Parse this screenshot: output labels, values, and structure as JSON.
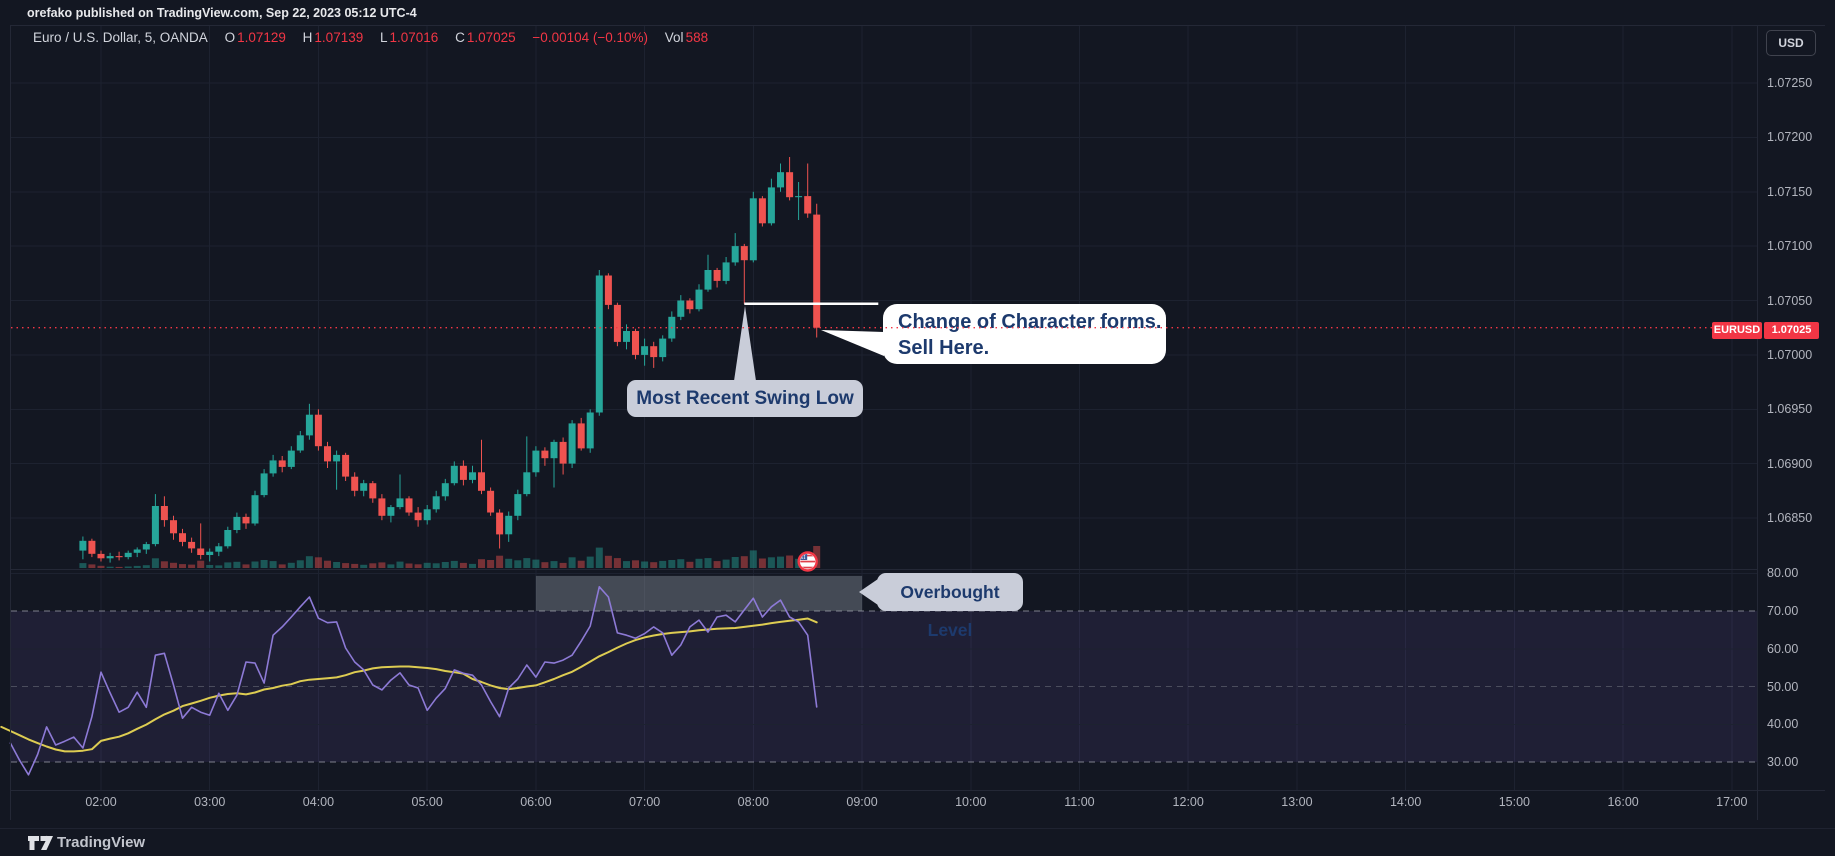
{
  "title_bar": {
    "text": "orefako published on TradingView.com, Sep 22, 2023 05:12 UTC-4"
  },
  "header": {
    "symbol_title": "Euro / U.S. Dollar, 5, OANDA",
    "ohlc": {
      "o_label": "O",
      "o": "1.07129",
      "h_label": "H",
      "h": "1.07139",
      "l_label": "L",
      "l": "1.07016",
      "c_label": "C",
      "c": "1.07025",
      "change": "−0.00104 (−0.10%)",
      "vol_label": "Vol",
      "vol": "588"
    },
    "currency_button": "USD"
  },
  "annotations": {
    "change_of_character": {
      "line1": "Change of Character forms.",
      "line2": "Sell Here."
    },
    "swing_low": {
      "text": "Most Recent Swing Low"
    },
    "overbought": {
      "text": "Overbought Level"
    }
  },
  "price_scale": {
    "labels": [
      "1.07250",
      "1.07200",
      "1.07150",
      "1.07100",
      "1.07050",
      "1.07000",
      "1.06950",
      "1.06900",
      "1.06850"
    ],
    "last_price_badge": {
      "symbol": "EURUSD",
      "price": "1.07025"
    }
  },
  "rsi_scale": {
    "labels": [
      "80.00",
      "70.00",
      "60.00",
      "50.00",
      "40.00",
      "30.00"
    ]
  },
  "time_axis": {
    "labels": [
      "02:00",
      "03:00",
      "04:00",
      "05:00",
      "06:00",
      "07:00",
      "08:00",
      "09:00",
      "10:00",
      "11:00",
      "12:00",
      "13:00",
      "14:00",
      "15:00",
      "16:00",
      "17:00"
    ]
  },
  "footer": {
    "brand": "TradingView"
  },
  "colors": {
    "background": "#131722",
    "grid": "#1d2230",
    "up": "#26a69a",
    "down": "#ef5350",
    "accent_red": "#f23645",
    "rsi_line": "#8d7ad6",
    "rsi_ma_line": "#ddcc52",
    "rsi_band_fill": "rgba(126,87,194,0.12)",
    "band_dash": "rgba(160,163,172,0.75)",
    "mid_dash": "rgba(120,123,134,0.5)",
    "overbought_zone_fill": "rgba(151,158,169,0.38)",
    "tooltip_bg": "#c9cdd9",
    "white_box_bg": "#ffffff",
    "annotation_text": "#1d3a6d",
    "swing_line": "#ffffff"
  },
  "chart_data": {
    "type": "candlestick",
    "title": "Euro / U.S. Dollar, 5, OANDA",
    "symbol": "EURUSD",
    "interval_minutes": 5,
    "x_unit": "minutes offset from 02:00",
    "price_axis_range": [
      1.068,
      1.0728
    ],
    "time_axis_range_labels": [
      "02:00",
      "17:00"
    ],
    "last_bar": {
      "open": 1.07129,
      "high": 1.07139,
      "low": 1.07016,
      "close": 1.07025,
      "change": -0.00104,
      "change_pct": -0.1,
      "volume": 588
    },
    "levels": {
      "current_price_dotted_line": 1.07025,
      "swing_low_white_line": {
        "price": 1.07047,
        "t_start": 355,
        "t_end": 429
      },
      "rsi_bands": [
        70,
        50,
        30
      ],
      "rsi_grid": [
        80,
        60,
        40
      ],
      "overbought_zone": {
        "t_start": 240,
        "t_end": 420,
        "rsi_low": 70,
        "rsi_high": 79.3
      }
    },
    "candles_format": [
      "t",
      "open",
      "high",
      "low",
      "close"
    ],
    "candles": [
      [
        -10,
        1.0682,
        1.06833,
        1.06812,
        1.06829
      ],
      [
        -5,
        1.06829,
        1.06831,
        1.06814,
        1.06817
      ],
      [
        0,
        1.06817,
        1.0682,
        1.0681,
        1.06813
      ],
      [
        5,
        1.06813,
        1.06818,
        1.06809,
        1.06815
      ],
      [
        10,
        1.06815,
        1.06819,
        1.06811,
        1.06814
      ],
      [
        15,
        1.06814,
        1.0682,
        1.06812,
        1.06818
      ],
      [
        20,
        1.06818,
        1.06823,
        1.06814,
        1.06821
      ],
      [
        25,
        1.06821,
        1.06828,
        1.06817,
        1.06826
      ],
      [
        30,
        1.06826,
        1.06872,
        1.06824,
        1.06861
      ],
      [
        35,
        1.06861,
        1.0687,
        1.06842,
        1.06848
      ],
      [
        40,
        1.06848,
        1.06852,
        1.0683,
        1.06836
      ],
      [
        45,
        1.06836,
        1.0684,
        1.06824,
        1.06828
      ],
      [
        50,
        1.06828,
        1.06832,
        1.06818,
        1.06822
      ],
      [
        55,
        1.06822,
        1.06845,
        1.06812,
        1.06816
      ],
      [
        60,
        1.06816,
        1.06822,
        1.0681,
        1.06819
      ],
      [
        65,
        1.06819,
        1.06827,
        1.06815,
        1.06824
      ],
      [
        70,
        1.06824,
        1.06842,
        1.06822,
        1.06839
      ],
      [
        75,
        1.06839,
        1.06855,
        1.06836,
        1.06851
      ],
      [
        80,
        1.06851,
        1.06854,
        1.0684,
        1.06845
      ],
      [
        85,
        1.06845,
        1.06875,
        1.06843,
        1.06871
      ],
      [
        90,
        1.06871,
        1.06895,
        1.06869,
        1.06891
      ],
      [
        95,
        1.06891,
        1.06908,
        1.06888,
        1.06903
      ],
      [
        100,
        1.06903,
        1.06907,
        1.06892,
        1.06897
      ],
      [
        105,
        1.06897,
        1.06916,
        1.06895,
        1.06912
      ],
      [
        110,
        1.06912,
        1.0693,
        1.0691,
        1.06926
      ],
      [
        115,
        1.06926,
        1.06955,
        1.06922,
        1.06945
      ],
      [
        120,
        1.06945,
        1.0695,
        1.06912,
        1.06916
      ],
      [
        125,
        1.06916,
        1.0692,
        1.06896,
        1.06902
      ],
      [
        130,
        1.06902,
        1.06912,
        1.06876,
        1.06908
      ],
      [
        135,
        1.06908,
        1.0691,
        1.06884,
        1.06888
      ],
      [
        140,
        1.06888,
        1.06892,
        1.0687,
        1.06875
      ],
      [
        145,
        1.06875,
        1.06885,
        1.0687,
        1.06882
      ],
      [
        150,
        1.06882,
        1.06884,
        1.06864,
        1.06868
      ],
      [
        155,
        1.06868,
        1.06872,
        1.06848,
        1.06852
      ],
      [
        160,
        1.06852,
        1.06862,
        1.06846,
        1.0686
      ],
      [
        165,
        1.0686,
        1.0689,
        1.06858,
        1.06868
      ],
      [
        170,
        1.06868,
        1.0687,
        1.06852,
        1.06855
      ],
      [
        175,
        1.06855,
        1.0686,
        1.06842,
        1.06848
      ],
      [
        180,
        1.06848,
        1.06862,
        1.06844,
        1.06858
      ],
      [
        185,
        1.06858,
        1.06875,
        1.06855,
        1.0687
      ],
      [
        190,
        1.0687,
        1.06886,
        1.06866,
        1.06882
      ],
      [
        195,
        1.06882,
        1.06902,
        1.0688,
        1.06898
      ],
      [
        200,
        1.06898,
        1.06903,
        1.0688,
        1.06885
      ],
      [
        205,
        1.06885,
        1.06898,
        1.06882,
        1.06892
      ],
      [
        210,
        1.06892,
        1.06922,
        1.06872,
        1.06875
      ],
      [
        215,
        1.06875,
        1.06878,
        1.06852,
        1.06855
      ],
      [
        220,
        1.06855,
        1.06858,
        1.06822,
        1.06835
      ],
      [
        225,
        1.06835,
        1.06856,
        1.06828,
        1.06852
      ],
      [
        230,
        1.06852,
        1.06876,
        1.06848,
        1.06872
      ],
      [
        235,
        1.06872,
        1.06925,
        1.0687,
        1.06892
      ],
      [
        240,
        1.06892,
        1.06916,
        1.06888,
        1.06912
      ],
      [
        245,
        1.06912,
        1.06915,
        1.06898,
        1.06905
      ],
      [
        250,
        1.06905,
        1.06922,
        1.06878,
        1.0692
      ],
      [
        255,
        1.0692,
        1.06924,
        1.0689,
        1.069
      ],
      [
        260,
        1.069,
        1.0694,
        1.06896,
        1.06937
      ],
      [
        265,
        1.06937,
        1.06942,
        1.06912,
        1.06914
      ],
      [
        270,
        1.06914,
        1.0695,
        1.0691,
        1.06947
      ],
      [
        275,
        1.06947,
        1.07078,
        1.06944,
        1.07073
      ],
      [
        280,
        1.07073,
        1.07075,
        1.07042,
        1.07046
      ],
      [
        285,
        1.07046,
        1.07048,
        1.07008,
        1.07012
      ],
      [
        290,
        1.07012,
        1.07028,
        1.07005,
        1.07022
      ],
      [
        295,
        1.07022,
        1.07024,
        1.06996,
        1.07
      ],
      [
        300,
        1.07,
        1.07015,
        1.0699,
        1.07008
      ],
      [
        305,
        1.07008,
        1.07012,
        1.06988,
        1.06998
      ],
      [
        310,
        1.06998,
        1.07018,
        1.06994,
        1.07015
      ],
      [
        315,
        1.07015,
        1.0704,
        1.07012,
        1.07035
      ],
      [
        320,
        1.07035,
        1.07055,
        1.07032,
        1.0705
      ],
      [
        325,
        1.0705,
        1.07052,
        1.07038,
        1.07042
      ],
      [
        330,
        1.07042,
        1.07065,
        1.0704,
        1.0706
      ],
      [
        335,
        1.0706,
        1.07092,
        1.07058,
        1.07078
      ],
      [
        340,
        1.07078,
        1.0708,
        1.07062,
        1.07068
      ],
      [
        345,
        1.07068,
        1.0709,
        1.07065,
        1.07085
      ],
      [
        350,
        1.07085,
        1.07112,
        1.07082,
        1.071
      ],
      [
        355,
        1.071,
        1.07102,
        1.07047,
        1.07087
      ],
      [
        360,
        1.07087,
        1.0715,
        1.07085,
        1.07144
      ],
      [
        365,
        1.07144,
        1.07146,
        1.07118,
        1.07121
      ],
      [
        370,
        1.07121,
        1.07162,
        1.07119,
        1.07154
      ],
      [
        375,
        1.07154,
        1.07176,
        1.0715,
        1.07168
      ],
      [
        380,
        1.07168,
        1.07182,
        1.07142,
        1.07145
      ],
      [
        385,
        1.07145,
        1.07159,
        1.07124,
        1.07146
      ],
      [
        390,
        1.07146,
        1.07176,
        1.07126,
        1.0713
      ],
      [
        395,
        1.07129,
        1.07139,
        1.07016,
        1.07025
      ]
    ],
    "volume": [
      130,
      95,
      60,
      35,
      30,
      40,
      55,
      75,
      260,
      180,
      140,
      105,
      90,
      195,
      80,
      70,
      150,
      165,
      95,
      175,
      215,
      185,
      95,
      140,
      205,
      315,
      285,
      195,
      160,
      130,
      110,
      85,
      125,
      150,
      95,
      170,
      120,
      100,
      140,
      125,
      160,
      190,
      135,
      110,
      235,
      215,
      330,
      245,
      205,
      265,
      225,
      155,
      185,
      135,
      285,
      195,
      305,
      545,
      325,
      265,
      185,
      205,
      175,
      155,
      190,
      215,
      235,
      165,
      245,
      265,
      185,
      225,
      295,
      315,
      470,
      255,
      285,
      305,
      335,
      245,
      295,
      588
    ],
    "indicators": {
      "rsi": {
        "name": "RSI (purple)",
        "t_start": -50,
        "t_step": 5,
        "values": [
          35,
          30.5,
          26.6,
          32,
          39.3,
          34.5,
          35.5,
          36.6,
          33.7,
          42,
          53.8,
          48.3,
          43.2,
          44.5,
          48.5,
          44.5,
          58.3,
          58.8,
          50.4,
          41.6,
          44.5,
          43.2,
          42.4,
          48.2,
          43.7,
          47.7,
          56.5,
          56.2,
          50.9,
          63.6,
          65.8,
          68.4,
          71.1,
          73.7,
          68.1,
          66.9,
          67.1,
          60.2,
          56.5,
          54.4,
          50.4,
          49.1,
          51.7,
          53.6,
          50.4,
          49.6,
          43.7,
          46.9,
          49.5,
          54.4,
          53.5,
          53,
          50.4,
          46,
          42,
          49.6,
          52,
          55.7,
          52.5,
          56.5,
          56.2,
          57,
          58.3,
          62,
          66,
          76.4,
          73.7,
          64.2,
          63.6,
          62.8,
          64,
          65.8,
          64.2,
          58.3,
          61,
          65.8,
          67.6,
          64.4,
          68.4,
          68.9,
          67.1,
          70.3,
          73.4,
          68.4,
          71.1,
          72.9,
          68.4,
          67.1,
          63.6,
          44.6
        ]
      },
      "rsi_ma": {
        "name": "RSI-based MA (yellow)",
        "t_start": -55,
        "t_step": 5,
        "values": [
          39.3,
          38.2,
          37.1,
          36,
          35,
          34.1,
          33.3,
          32.8,
          32.8,
          33,
          33.4,
          35.6,
          36.2,
          36.7,
          37.6,
          38.8,
          39.9,
          41.3,
          42.6,
          43.6,
          44.8,
          45.5,
          46.2,
          47,
          47.6,
          48,
          48.2,
          47.9,
          48.4,
          49.2,
          49.6,
          50.2,
          50.6,
          51.4,
          51.8,
          52,
          52.2,
          52.4,
          53,
          53.8,
          54.2,
          54.8,
          55.1,
          55.2,
          55.3,
          55.3,
          55.1,
          54.9,
          54.6,
          54.1,
          53.8,
          53.4,
          52,
          51.2,
          50.3,
          49.6,
          49.3,
          49.6,
          50,
          50.3,
          51.1,
          52,
          53,
          53.9,
          55.2,
          56.6,
          58,
          59.1,
          60.3,
          61.4,
          62.3,
          63,
          63.5,
          63.9,
          64.2,
          64.4,
          64.6,
          64.9,
          65.1,
          65.3,
          65.4,
          65.5,
          65.8,
          66.1,
          66.4,
          66.8,
          67.1,
          67.4,
          67.7,
          68,
          67
        ]
      }
    },
    "event_marker": {
      "type": "us-flag-economic-event",
      "t": 390,
      "price": 1.0681
    }
  }
}
